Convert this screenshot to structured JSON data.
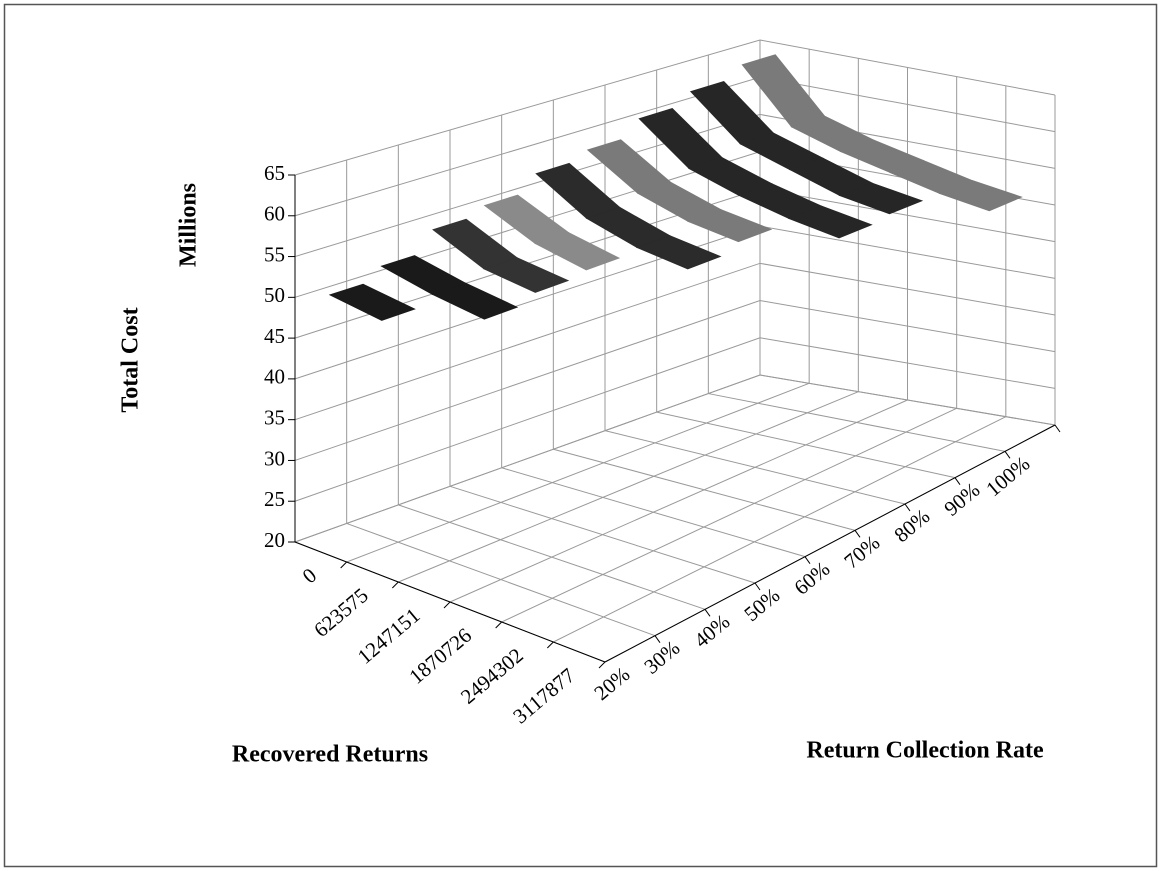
{
  "chart_data": {
    "type": "ribbon3d",
    "y_label": "Total Cost",
    "y_unit_label": "Millions",
    "x_label": "Recovered Returns",
    "series_label": "Return Collection Rate",
    "categories": [
      "0",
      "623575",
      "1247151",
      "1870726",
      "2494302",
      "3117877"
    ],
    "series": [
      {
        "name": "20%",
        "color": "#1a1a1a",
        "values": [
          51,
          50,
          null,
          null,
          null,
          null
        ]
      },
      {
        "name": "30%",
        "color": "#1a1a1a",
        "values": [
          52.5,
          51,
          50,
          null,
          null,
          null
        ]
      },
      {
        "name": "40%",
        "color": "#333333",
        "values": [
          55,
          52,
          51,
          null,
          null,
          null
        ]
      },
      {
        "name": "50%",
        "color": "#8a8a8a",
        "values": [
          56,
          53,
          51.5,
          null,
          null,
          null
        ]
      },
      {
        "name": "60%",
        "color": "#2b2b2b",
        "values": [
          58,
          54,
          52,
          51,
          null,
          null
        ]
      },
      {
        "name": "70%",
        "color": "#7a7a7a",
        "values": [
          59,
          55,
          53,
          52,
          null,
          null
        ]
      },
      {
        "name": "80%",
        "color": "#262626",
        "values": [
          61,
          56,
          54,
          52.5,
          51.5,
          null
        ]
      },
      {
        "name": "90%",
        "color": "#262626",
        "values": [
          62.5,
          57,
          55,
          53,
          52,
          null
        ]
      },
      {
        "name": "100%",
        "color": "#7a7a7a",
        "values": [
          64,
          57,
          55,
          53.5,
          52,
          51
        ]
      }
    ],
    "ylim": [
      20,
      65
    ],
    "yticks": [
      20,
      25,
      30,
      35,
      40,
      45,
      50,
      55,
      60,
      65
    ],
    "grid": true
  }
}
